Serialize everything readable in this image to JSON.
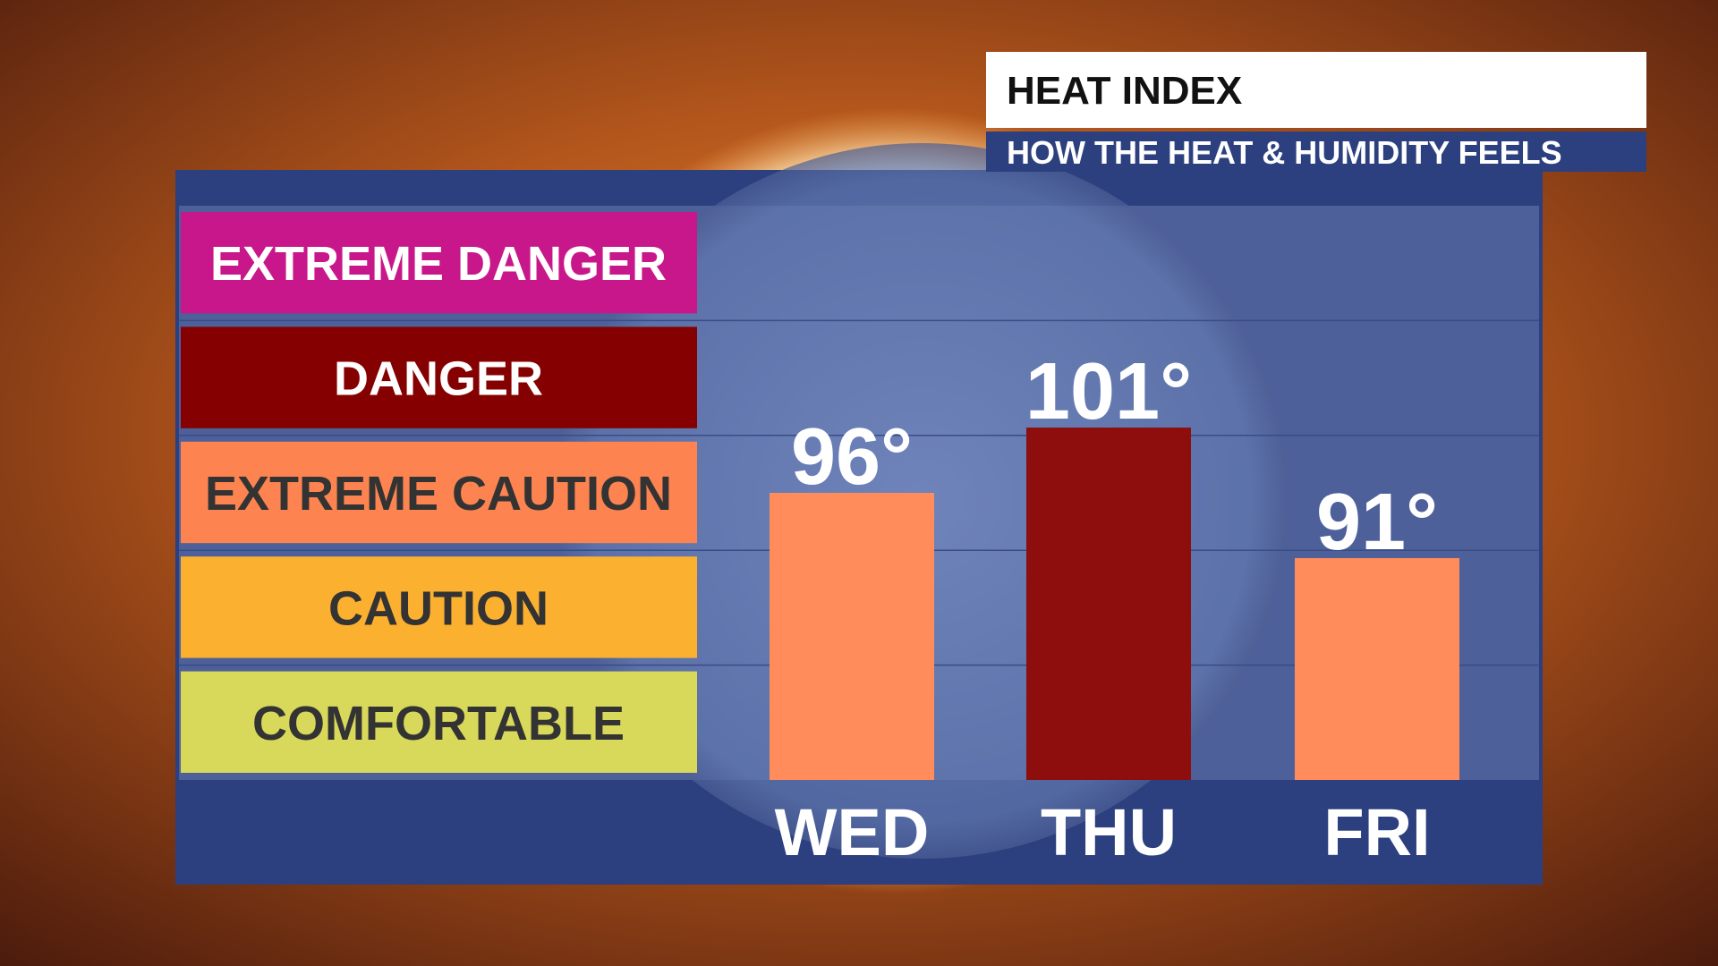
{
  "chart_data": {
    "type": "bar",
    "title": "HEAT INDEX",
    "subtitle": "HOW THE HEAT & HUMIDITY FEELS",
    "levels": [
      {
        "label": "EXTREME DANGER",
        "color": "#c8178a",
        "text_color": "#ffffff"
      },
      {
        "label": "DANGER",
        "color": "#850000",
        "text_color": "#ffffff"
      },
      {
        "label": "EXTREME CAUTION",
        "color": "#fd8450",
        "text_color": "#333333"
      },
      {
        "label": "CAUTION",
        "color": "#fcb030",
        "text_color": "#333333"
      },
      {
        "label": "COMFORTABLE",
        "color": "#d8d95a",
        "text_color": "#333333"
      }
    ],
    "categories": [
      "WED",
      "THU",
      "FRI"
    ],
    "values": [
      96,
      101,
      91
    ],
    "value_labels": [
      "96°",
      "101°",
      "91°"
    ],
    "colors": [
      "#ff8c5a",
      "#8e0e0e",
      "#ff8c5a"
    ],
    "ylim": [
      74,
      118
    ]
  }
}
